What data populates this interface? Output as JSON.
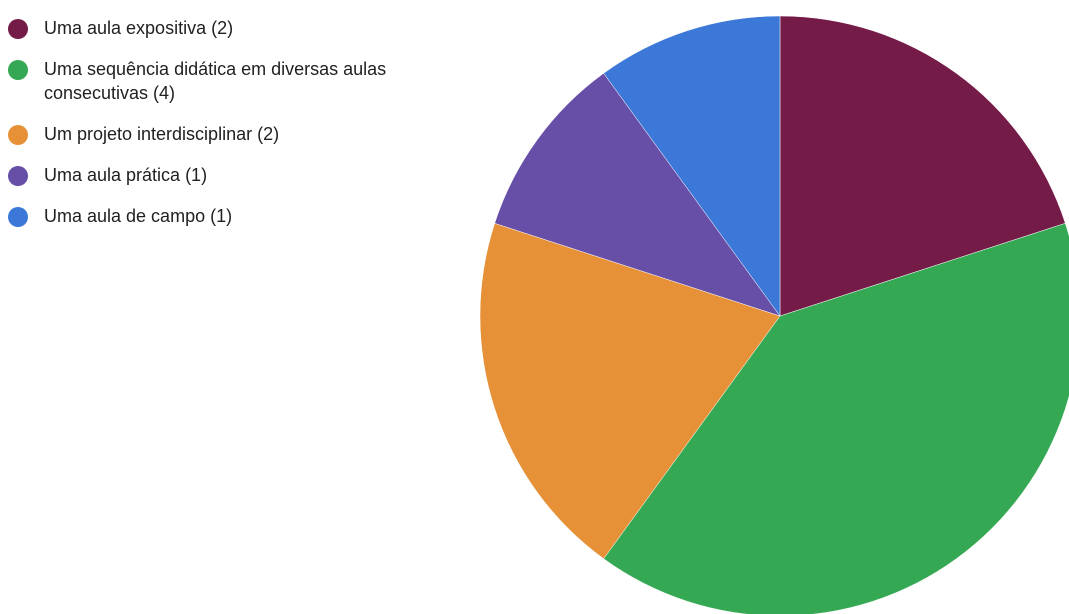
{
  "chart_data": {
    "type": "pie",
    "title": "",
    "legend_position": "left",
    "start_angle_deg": 0,
    "direction": "clockwise",
    "slices": [
      {
        "label": "Uma aula expositiva (2)",
        "value": 2,
        "color": "#741B47"
      },
      {
        "label": "Uma sequência didática em diversas aulas consecutivas (4)",
        "value": 4,
        "color": "#34A853"
      },
      {
        "label": "Um projeto interdisciplinar (2)",
        "value": 2,
        "color": "#E69138"
      },
      {
        "label": "Uma aula prática (1)",
        "value": 1,
        "color": "#674EA7"
      },
      {
        "label": "Uma aula de campo (1)",
        "value": 1,
        "color": "#3C78D8"
      }
    ]
  }
}
